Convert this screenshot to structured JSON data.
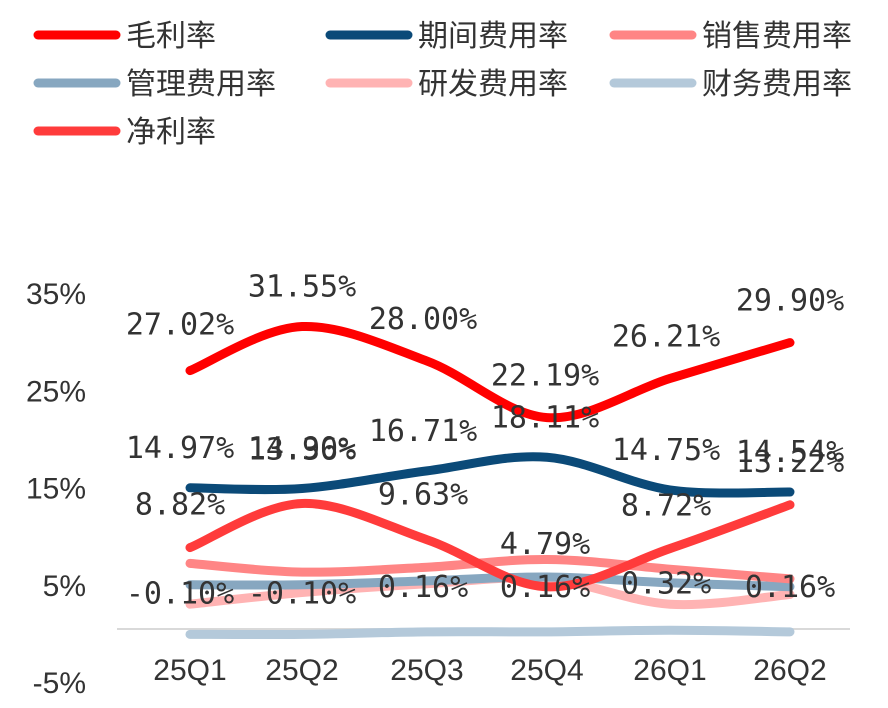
{
  "chart_data": {
    "type": "line",
    "categories": [
      "25Q1",
      "25Q2",
      "25Q3",
      "25Q4",
      "26Q1",
      "26Q2"
    ],
    "y_ticks": [
      "35%",
      "25%",
      "15%",
      "5%",
      "-5%"
    ],
    "ylim": [
      -5,
      35
    ],
    "grid": false,
    "legend_position": "top",
    "series": [
      {
        "name": "毛利率",
        "color": "#FF0000",
        "values": [
          27.02,
          31.55,
          28.0,
          22.19,
          26.21,
          29.9
        ],
        "labels": [
          "27.02%",
          "31.55%",
          "28.00%",
          "22.19%",
          "26.21%",
          "29.90%"
        ]
      },
      {
        "name": "期间费用率",
        "color": "#0B4A78",
        "values": [
          14.97,
          14.9,
          16.71,
          18.11,
          14.75,
          14.54
        ],
        "labels": [
          "14.97%",
          "14.90%",
          "16.71%",
          "18.11%",
          "14.75%",
          "14.54%"
        ]
      },
      {
        "name": "销售费用率",
        "color": "#FF8585",
        "values": [
          7.2,
          6.3,
          6.8,
          7.6,
          6.6,
          5.6
        ],
        "labels": []
      },
      {
        "name": "管理费用率",
        "color": "#87A7C0",
        "values": [
          5.0,
          5.0,
          5.4,
          5.8,
          5.2,
          4.8
        ],
        "labels": []
      },
      {
        "name": "研发费用率",
        "color": "#FFB3B3",
        "values": [
          3.0,
          4.2,
          5.1,
          5.6,
          3.0,
          4.0
        ],
        "labels": []
      },
      {
        "name": "财务费用率",
        "color": "#B4C9DA",
        "values": [
          -0.1,
          -0.1,
          0.16,
          0.16,
          0.32,
          0.16
        ],
        "labels": [
          "-0.10%",
          "-0.10%",
          "0.16%",
          "0.16%",
          "0.32%",
          "0.16%"
        ]
      },
      {
        "name": "净利率",
        "color": "#FF3B3B",
        "values": [
          8.82,
          13.36,
          9.63,
          4.79,
          8.72,
          13.22
        ],
        "labels": [
          "8.82%",
          "13.36%",
          "9.63%",
          "4.79%",
          "8.72%",
          "13.22%"
        ]
      }
    ]
  }
}
